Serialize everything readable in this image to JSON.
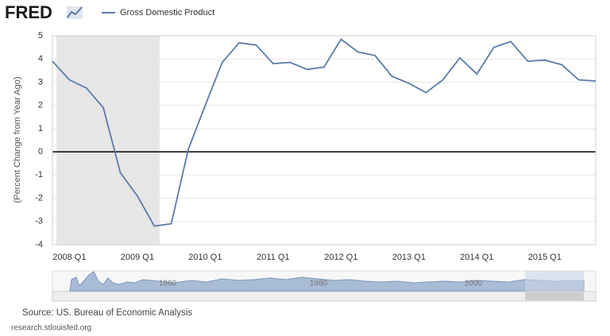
{
  "logo": "FRED",
  "chart_data": {
    "type": "line",
    "ylabel": "(Percent Change from Year Ago)",
    "categories": [
      null,
      "2008 Q1",
      null,
      null,
      null,
      "2009 Q1",
      null,
      null,
      null,
      "2010 Q1",
      null,
      null,
      null,
      "2011 Q1",
      null,
      null,
      null,
      "2012 Q1",
      null,
      null,
      null,
      "2013 Q1",
      null,
      null,
      null,
      "2014 Q1",
      null,
      null,
      null,
      "2015 Q1",
      null,
      null,
      null
    ],
    "series": [
      {
        "name": "Gross Domestic Product",
        "color": "#5b7ba8",
        "values": [
          3.9,
          3.1,
          2.75,
          1.9,
          -0.9,
          -1.9,
          -3.2,
          -3.1,
          0.1,
          2.0,
          3.85,
          4.7,
          4.6,
          3.8,
          3.85,
          3.55,
          3.65,
          4.85,
          4.3,
          4.15,
          3.25,
          2.95,
          2.55,
          3.1,
          4.05,
          3.35,
          4.5,
          4.75,
          3.9,
          3.95,
          3.75,
          3.1,
          3.05
        ]
      }
    ],
    "ylim": [
      -4,
      5
    ],
    "yticks": [
      -4,
      -3,
      -2,
      -1,
      0,
      1,
      2,
      3,
      4,
      5
    ],
    "grid": true
  },
  "navigator": {
    "labels": [
      "1960",
      "1980",
      "2000"
    ]
  },
  "footer": {
    "source": "Source: US. Bureau of Economic Analysis",
    "url": "research.stlouisfed.org"
  }
}
